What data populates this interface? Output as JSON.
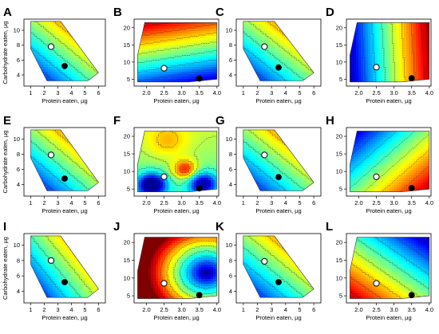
{
  "figure": {
    "panels": [
      {
        "letter": "A",
        "xlabel": "Protein eaten, µg",
        "ylabel": "Carbohydrate eaten, µg",
        "xticks": [
          "1",
          "2",
          "3",
          "4",
          "5",
          "6"
        ],
        "yticks": [
          "4",
          "6",
          "8",
          "10"
        ]
      },
      {
        "letter": "B",
        "xlabel": "Protein eaten, µg",
        "ylabel": "",
        "xticks": [
          "2.0",
          "2.5",
          "3.0",
          "3.5",
          "4.0"
        ],
        "yticks": [
          "5",
          "10",
          "15",
          "20"
        ]
      },
      {
        "letter": "C",
        "xlabel": "Protein eaten, µg",
        "ylabel": "",
        "xticks": [
          "1",
          "2",
          "3",
          "4",
          "5",
          "6"
        ],
        "yticks": [
          "4",
          "6",
          "8",
          "10"
        ]
      },
      {
        "letter": "D",
        "xlabel": "Protein eaten, µg",
        "ylabel": "",
        "xticks": [
          "2.0",
          "2.5",
          "3.0",
          "3.5",
          "4.0"
        ],
        "yticks": [
          "5",
          "10",
          "15",
          "20"
        ]
      },
      {
        "letter": "E",
        "xlabel": "Protein eaten, µg",
        "ylabel": "Carbohydrate eaten, µg",
        "xticks": [
          "1",
          "2",
          "3",
          "4",
          "5",
          "6"
        ],
        "yticks": [
          "4",
          "6",
          "8",
          "10"
        ]
      },
      {
        "letter": "F",
        "xlabel": "Protein eaten, µg",
        "ylabel": "",
        "xticks": [
          "2.0",
          "2.5",
          "3.0",
          "3.5",
          "4.0"
        ],
        "yticks": [
          "5",
          "10",
          "15",
          "20"
        ]
      },
      {
        "letter": "G",
        "xlabel": "Protein eaten, µg",
        "ylabel": "",
        "xticks": [
          "1",
          "2",
          "3",
          "4",
          "5",
          "6"
        ],
        "yticks": [
          "4",
          "6",
          "8",
          "10"
        ]
      },
      {
        "letter": "H",
        "xlabel": "Protein eaten, µg",
        "ylabel": "",
        "xticks": [
          "2.0",
          "2.5",
          "3.0",
          "3.5",
          "4.0"
        ],
        "yticks": [
          "5",
          "10",
          "15",
          "20"
        ]
      },
      {
        "letter": "I",
        "xlabel": "Protein eaten, µg",
        "ylabel": "Carbohydrate eaten, µg",
        "xticks": [
          "1",
          "2",
          "3",
          "4",
          "5",
          "6"
        ],
        "yticks": [
          "4",
          "6",
          "8",
          "10"
        ]
      },
      {
        "letter": "J",
        "xlabel": "Protein eaten, µg",
        "ylabel": "",
        "xticks": [
          "2.0",
          "2.5",
          "3.0",
          "3.5",
          "4.0"
        ],
        "yticks": [
          "5",
          "10",
          "15",
          "20"
        ]
      },
      {
        "letter": "K",
        "xlabel": "Protein eaten, µg",
        "ylabel": "",
        "xticks": [
          "1",
          "2",
          "3",
          "4",
          "5",
          "6"
        ],
        "yticks": [
          "4",
          "6",
          "8",
          "10"
        ]
      },
      {
        "letter": "L",
        "xlabel": "Protein eaten, µg",
        "ylabel": "",
        "xticks": [
          "2.0",
          "2.5",
          "3.0",
          "3.5",
          "4.0"
        ],
        "yticks": [
          "5",
          "10",
          "15",
          "20"
        ]
      }
    ]
  },
  "chart_data": [
    {
      "panel": "A",
      "type": "heatmap",
      "xlim": [
        0.5,
        6.5
      ],
      "ylim": [
        2.5,
        11.5
      ],
      "region": [
        [
          1,
          11.2
        ],
        [
          3.2,
          11.2
        ],
        [
          6,
          4.3
        ],
        [
          5.2,
          3.2
        ],
        [
          2.2,
          3.2
        ],
        [
          1,
          7.5
        ]
      ],
      "field": "linear",
      "ux": 0.6,
      "uy": 0.6,
      "white_point": [
        2.5,
        7.8
      ],
      "black_point": [
        3.5,
        5.2
      ]
    },
    {
      "panel": "B",
      "type": "heatmap",
      "xlim": [
        1.65,
        4.05
      ],
      "ylim": [
        3,
        22.5
      ],
      "region": [
        [
          1.95,
          21.5
        ],
        [
          4.0,
          21.5
        ],
        [
          4.0,
          5
        ],
        [
          3.2,
          4.2
        ],
        [
          1.75,
          4.2
        ],
        [
          1.75,
          12
        ]
      ],
      "field": "linear",
      "ux": -0.2,
      "uy": 1.0,
      "white_point": [
        2.5,
        8.2
      ],
      "black_point": [
        3.5,
        5.2
      ]
    },
    {
      "panel": "C",
      "type": "heatmap",
      "xlim": [
        0.5,
        6.5
      ],
      "ylim": [
        2.5,
        11.5
      ],
      "region": [
        [
          1,
          11.2
        ],
        [
          3.2,
          11.2
        ],
        [
          6,
          4.3
        ],
        [
          5.2,
          3.2
        ],
        [
          2.2,
          3.2
        ],
        [
          1,
          7.5
        ]
      ],
      "field": "linear",
      "ux": 0.6,
      "uy": 0.6,
      "white_point": [
        2.5,
        7.8
      ],
      "black_point": [
        3.5,
        5.0
      ]
    },
    {
      "panel": "D",
      "type": "heatmap",
      "xlim": [
        1.65,
        4.05
      ],
      "ylim": [
        3,
        22.5
      ],
      "region": [
        [
          1.95,
          21.5
        ],
        [
          4.0,
          21.5
        ],
        [
          4.0,
          5
        ],
        [
          3.2,
          4.2
        ],
        [
          1.75,
          4.2
        ],
        [
          1.75,
          12
        ]
      ],
      "field": "linear",
      "ux": 1.0,
      "uy": 0.05,
      "white_point": [
        2.5,
        8.5
      ],
      "black_point": [
        3.5,
        5.3
      ]
    },
    {
      "panel": "E",
      "type": "heatmap",
      "xlim": [
        0.5,
        6.5
      ],
      "ylim": [
        2.5,
        11.5
      ],
      "region": [
        [
          1,
          11.2
        ],
        [
          3.2,
          11.2
        ],
        [
          6,
          4.3
        ],
        [
          5.2,
          3.2
        ],
        [
          2.2,
          3.2
        ],
        [
          1,
          7.5
        ]
      ],
      "field": "linear",
      "ux": 0.6,
      "uy": 0.6,
      "white_point": [
        2.5,
        7.9
      ],
      "black_point": [
        3.5,
        4.8
      ]
    },
    {
      "panel": "F",
      "type": "heatmap",
      "xlim": [
        1.65,
        4.05
      ],
      "ylim": [
        3,
        22.5
      ],
      "region": [
        [
          1.95,
          21.5
        ],
        [
          4.0,
          21.5
        ],
        [
          4.0,
          5
        ],
        [
          3.2,
          4.2
        ],
        [
          1.75,
          4.2
        ],
        [
          1.75,
          12
        ]
      ],
      "field": "bumps",
      "white_point": [
        2.5,
        8.5
      ],
      "black_point": [
        3.5,
        5.2
      ]
    },
    {
      "panel": "G",
      "type": "heatmap",
      "xlim": [
        0.5,
        6.5
      ],
      "ylim": [
        2.5,
        11.5
      ],
      "region": [
        [
          1,
          11.2
        ],
        [
          3.2,
          11.2
        ],
        [
          6,
          4.3
        ],
        [
          5.2,
          3.2
        ],
        [
          2.2,
          3.2
        ],
        [
          1,
          7.5
        ]
      ],
      "field": "linear",
      "ux": 0.6,
      "uy": 0.6,
      "white_point": [
        2.5,
        7.9
      ],
      "black_point": [
        3.5,
        5.0
      ]
    },
    {
      "panel": "H",
      "type": "heatmap",
      "xlim": [
        1.65,
        4.05
      ],
      "ylim": [
        3,
        22.5
      ],
      "region": [
        [
          1.95,
          21.5
        ],
        [
          4.0,
          21.5
        ],
        [
          4.0,
          5
        ],
        [
          3.2,
          4.2
        ],
        [
          1.75,
          4.2
        ],
        [
          1.75,
          12
        ]
      ],
      "field": "linear",
      "ux": 0.6,
      "uy": -0.55,
      "white_point": [
        2.5,
        8.5
      ],
      "black_point": [
        3.5,
        5.3
      ]
    },
    {
      "panel": "I",
      "type": "heatmap",
      "xlim": [
        0.5,
        6.5
      ],
      "ylim": [
        2.5,
        11.5
      ],
      "region": [
        [
          1,
          11.2
        ],
        [
          3.2,
          11.2
        ],
        [
          6,
          4.3
        ],
        [
          5.2,
          3.2
        ],
        [
          2.2,
          3.2
        ],
        [
          1,
          7.5
        ]
      ],
      "field": "linear",
      "ux": 0.65,
      "uy": 0.45,
      "white_point": [
        2.5,
        8.0
      ],
      "black_point": [
        3.5,
        5.2
      ]
    },
    {
      "panel": "J",
      "type": "heatmap",
      "xlim": [
        1.65,
        4.05
      ],
      "ylim": [
        3,
        22.5
      ],
      "region": [
        [
          1.95,
          21.5
        ],
        [
          4.0,
          21.5
        ],
        [
          4.0,
          5
        ],
        [
          3.2,
          4.2
        ],
        [
          1.75,
          4.2
        ],
        [
          1.75,
          12
        ]
      ],
      "field": "radial",
      "cx": 3.7,
      "cy": 11.5,
      "white_point": [
        2.5,
        8.5
      ],
      "black_point": [
        3.5,
        5.2
      ]
    },
    {
      "panel": "K",
      "type": "heatmap",
      "xlim": [
        0.5,
        6.5
      ],
      "ylim": [
        2.5,
        11.5
      ],
      "region": [
        [
          1,
          11.2
        ],
        [
          3.2,
          11.2
        ],
        [
          6,
          4.3
        ],
        [
          5.2,
          3.2
        ],
        [
          2.2,
          3.2
        ],
        [
          1,
          7.5
        ]
      ],
      "field": "linear",
      "ux": 0.6,
      "uy": 0.6,
      "white_point": [
        2.5,
        7.9
      ],
      "black_point": [
        3.5,
        5.2
      ]
    },
    {
      "panel": "L",
      "type": "heatmap",
      "xlim": [
        1.65,
        4.05
      ],
      "ylim": [
        3,
        22.5
      ],
      "region": [
        [
          1.95,
          21.5
        ],
        [
          4.0,
          21.5
        ],
        [
          4.0,
          5
        ],
        [
          3.2,
          4.2
        ],
        [
          1.75,
          4.2
        ],
        [
          1.75,
          12
        ]
      ],
      "field": "linear",
      "ux": -0.55,
      "uy": -0.65,
      "white_point": [
        2.5,
        8.5
      ],
      "black_point": [
        3.5,
        5.2
      ]
    }
  ]
}
